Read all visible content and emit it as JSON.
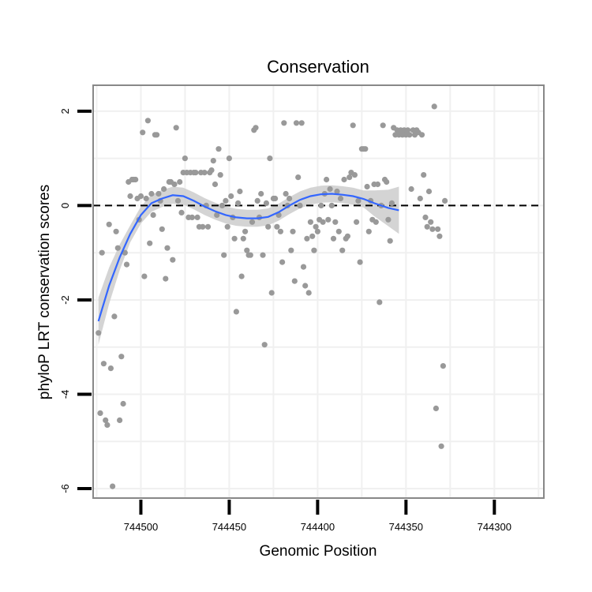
{
  "chart_data": {
    "type": "scatter",
    "title": "Conservation",
    "xlabel": "Genomic Position",
    "ylabel": "phyloP LRT conservation scores",
    "x_reversed": true,
    "xlim": [
      744527,
      744272
    ],
    "ylim": [
      -6.2,
      2.55
    ],
    "x_ticks": [
      744500,
      744450,
      744400,
      744350,
      744300
    ],
    "x_tick_labels": [
      "744500",
      "744450",
      "744400",
      "744350",
      "744300"
    ],
    "y_ticks": [
      2,
      0,
      -2,
      -4,
      -6
    ],
    "y_tick_labels": [
      "2",
      "0",
      "-2",
      "-4",
      "-6"
    ],
    "grid": true,
    "reference_line": {
      "y": 0,
      "style": "dashed"
    },
    "colors": {
      "points": "#999999",
      "smooth": "#3366ff",
      "band": "#cccccc",
      "panel_border": "#888888",
      "grid": "#f0f0f0"
    },
    "points": [
      [
        744524,
        -2.7
      ],
      [
        744523,
        -4.4
      ],
      [
        744522,
        -1.0
      ],
      [
        744521,
        -3.35
      ],
      [
        744520,
        -4.55
      ],
      [
        744519,
        -4.65
      ],
      [
        744518,
        -0.4
      ],
      [
        744517,
        -3.45
      ],
      [
        744516,
        -5.95
      ],
      [
        744515,
        -2.35
      ],
      [
        744514,
        -0.55
      ],
      [
        744513,
        -0.9
      ],
      [
        744512,
        -4.55
      ],
      [
        744511,
        -3.2
      ],
      [
        744510,
        -4.2
      ],
      [
        744509,
        -1.0
      ],
      [
        744508,
        -1.25
      ],
      [
        744507,
        0.5
      ],
      [
        744506,
        0.2
      ],
      [
        744505,
        0.55
      ],
      [
        744504,
        0.55
      ],
      [
        744503,
        0.55
      ],
      [
        744502,
        0.15
      ],
      [
        744501,
        -0.3
      ],
      [
        744500,
        0.2
      ],
      [
        744499,
        1.55
      ],
      [
        744498,
        -1.5
      ],
      [
        744497,
        0.15
      ],
      [
        744496,
        1.8
      ],
      [
        744495,
        -0.8
      ],
      [
        744494,
        0.25
      ],
      [
        744493,
        -0.2
      ],
      [
        744492,
        1.5
      ],
      [
        744491,
        1.5
      ],
      [
        744490,
        0.25
      ],
      [
        744489,
        0.1
      ],
      [
        744488,
        -0.5
      ],
      [
        744487,
        0.35
      ],
      [
        744486,
        -1.55
      ],
      [
        744485,
        -0.9
      ],
      [
        744484,
        0.5
      ],
      [
        744483,
        0.5
      ],
      [
        744482,
        -1.15
      ],
      [
        744481,
        0.45
      ],
      [
        744480,
        1.65
      ],
      [
        744479,
        0.1
      ],
      [
        744478,
        0.5
      ],
      [
        744477,
        -0.15
      ],
      [
        744476,
        0.7
      ],
      [
        744475,
        1.0
      ],
      [
        744474,
        0.7
      ],
      [
        744473,
        -0.25
      ],
      [
        744472,
        0.7
      ],
      [
        744471,
        -0.25
      ],
      [
        744470,
        0.7
      ],
      [
        744469,
        0.7
      ],
      [
        744468,
        -0.25
      ],
      [
        744467,
        -0.45
      ],
      [
        744466,
        0.7
      ],
      [
        744465,
        -0.45
      ],
      [
        744464,
        0.7
      ],
      [
        744463,
        0.0
      ],
      [
        744462,
        -0.45
      ],
      [
        744461,
        0.7
      ],
      [
        744460,
        0.75
      ],
      [
        744459,
        0.95
      ],
      [
        744458,
        0.45
      ],
      [
        744457,
        -0.2
      ],
      [
        744456,
        1.2
      ],
      [
        744455,
        0.65
      ],
      [
        744454,
        0.0
      ],
      [
        744453,
        -1.05
      ],
      [
        744452,
        0.1
      ],
      [
        744451,
        -0.45
      ],
      [
        744450,
        1.0
      ],
      [
        744449,
        0.2
      ],
      [
        744448,
        -0.25
      ],
      [
        744447,
        -0.7
      ],
      [
        744446,
        -2.25
      ],
      [
        744445,
        0.05
      ],
      [
        744444,
        0.3
      ],
      [
        744443,
        -1.5
      ],
      [
        744442,
        -0.7
      ],
      [
        744441,
        -0.55
      ],
      [
        744440,
        -0.95
      ],
      [
        744439,
        -1.05
      ],
      [
        744438,
        -1.05
      ],
      [
        744437,
        -0.35
      ],
      [
        744436,
        1.6
      ],
      [
        744435,
        1.65
      ],
      [
        744434,
        0.1
      ],
      [
        744433,
        -0.25
      ],
      [
        744432,
        0.25
      ],
      [
        744431,
        -1.05
      ],
      [
        744430,
        -2.95
      ],
      [
        744429,
        0.05
      ],
      [
        744428,
        -0.45
      ],
      [
        744427,
        1.0
      ],
      [
        744426,
        -1.85
      ],
      [
        744425,
        0.15
      ],
      [
        744424,
        0.15
      ],
      [
        744423,
        -0.45
      ],
      [
        744422,
        -0.2
      ],
      [
        744421,
        -0.55
      ],
      [
        744420,
        -1.2
      ],
      [
        744419,
        1.75
      ],
      [
        744418,
        0.25
      ],
      [
        744417,
        0.0
      ],
      [
        744416,
        0.15
      ],
      [
        744415,
        -0.95
      ],
      [
        744414,
        -0.55
      ],
      [
        744413,
        -1.6
      ],
      [
        744412,
        1.75
      ],
      [
        744411,
        0.6
      ],
      [
        744410,
        0.0
      ],
      [
        744409,
        1.75
      ],
      [
        744408,
        -1.3
      ],
      [
        744407,
        -1.7
      ],
      [
        744406,
        -0.7
      ],
      [
        744405,
        -1.85
      ],
      [
        744404,
        -0.35
      ],
      [
        744403,
        -0.65
      ],
      [
        744402,
        -0.95
      ],
      [
        744401,
        -0.45
      ],
      [
        744400,
        -0.55
      ],
      [
        744399,
        -0.3
      ],
      [
        744398,
        0.0
      ],
      [
        744397,
        -0.35
      ],
      [
        744396,
        0.25
      ],
      [
        744395,
        0.55
      ],
      [
        744394,
        -0.3
      ],
      [
        744393,
        0.35
      ],
      [
        744392,
        0.0
      ],
      [
        744391,
        -0.7
      ],
      [
        744390,
        -0.35
      ],
      [
        744389,
        0.3
      ],
      [
        744388,
        -0.55
      ],
      [
        744387,
        0.15
      ],
      [
        744386,
        -0.95
      ],
      [
        744385,
        0.55
      ],
      [
        744384,
        -0.7
      ],
      [
        744383,
        -0.65
      ],
      [
        744382,
        0.6
      ],
      [
        744381,
        0.7
      ],
      [
        744380,
        1.7
      ],
      [
        744379,
        0.65
      ],
      [
        744378,
        -0.35
      ],
      [
        744377,
        0.1
      ],
      [
        744376,
        -1.2
      ],
      [
        744375,
        1.2
      ],
      [
        744374,
        1.2
      ],
      [
        744373,
        1.2
      ],
      [
        744372,
        0.4
      ],
      [
        744371,
        -0.55
      ],
      [
        744370,
        0.1
      ],
      [
        744369,
        -0.3
      ],
      [
        744368,
        0.45
      ],
      [
        744367,
        -0.35
      ],
      [
        744366,
        0.45
      ],
      [
        744365,
        -2.05
      ],
      [
        744364,
        0.0
      ],
      [
        744363,
        1.7
      ],
      [
        744362,
        0.55
      ],
      [
        744361,
        0.5
      ],
      [
        744360,
        -0.3
      ],
      [
        744359,
        -0.75
      ],
      [
        744358,
        0.05
      ],
      [
        744357,
        1.65
      ],
      [
        744356,
        1.5
      ],
      [
        744355,
        1.6
      ],
      [
        744354,
        1.5
      ],
      [
        744353,
        1.6
      ],
      [
        744352,
        1.5
      ],
      [
        744351,
        1.6
      ],
      [
        744350,
        1.5
      ],
      [
        744349,
        1.6
      ],
      [
        744348,
        1.5
      ],
      [
        744347,
        0.35
      ],
      [
        744346,
        1.6
      ],
      [
        744345,
        1.5
      ],
      [
        744344,
        1.6
      ],
      [
        744343,
        1.55
      ],
      [
        744342,
        0.15
      ],
      [
        744341,
        1.5
      ],
      [
        744340,
        0.65
      ],
      [
        744339,
        -0.25
      ],
      [
        744338,
        -0.45
      ],
      [
        744337,
        0.3
      ],
      [
        744336,
        -0.35
      ],
      [
        744335,
        -0.5
      ],
      [
        744334,
        2.1
      ],
      [
        744333,
        -4.3
      ],
      [
        744332,
        -0.5
      ],
      [
        744331,
        -0.65
      ],
      [
        744330,
        -5.1
      ],
      [
        744329,
        -3.4
      ],
      [
        744328,
        0.1
      ]
    ],
    "smooth": [
      [
        744524,
        -2.45
      ],
      [
        744518,
        -1.7
      ],
      [
        744512,
        -1.1
      ],
      [
        744506,
        -0.6
      ],
      [
        744500,
        -0.2
      ],
      [
        744494,
        0.05
      ],
      [
        744488,
        0.15
      ],
      [
        744482,
        0.22
      ],
      [
        744476,
        0.2
      ],
      [
        744470,
        0.1
      ],
      [
        744464,
        -0.02
      ],
      [
        744458,
        -0.12
      ],
      [
        744452,
        -0.2
      ],
      [
        744446,
        -0.25
      ],
      [
        744440,
        -0.27
      ],
      [
        744434,
        -0.27
      ],
      [
        744428,
        -0.24
      ],
      [
        744422,
        -0.14
      ],
      [
        744416,
        0.0
      ],
      [
        744410,
        0.12
      ],
      [
        744404,
        0.2
      ],
      [
        744398,
        0.24
      ],
      [
        744392,
        0.25
      ],
      [
        744386,
        0.23
      ],
      [
        744380,
        0.2
      ],
      [
        744374,
        0.14
      ],
      [
        744368,
        0.05
      ],
      [
        744360,
        -0.05
      ],
      [
        744354,
        -0.1
      ]
    ]
  }
}
